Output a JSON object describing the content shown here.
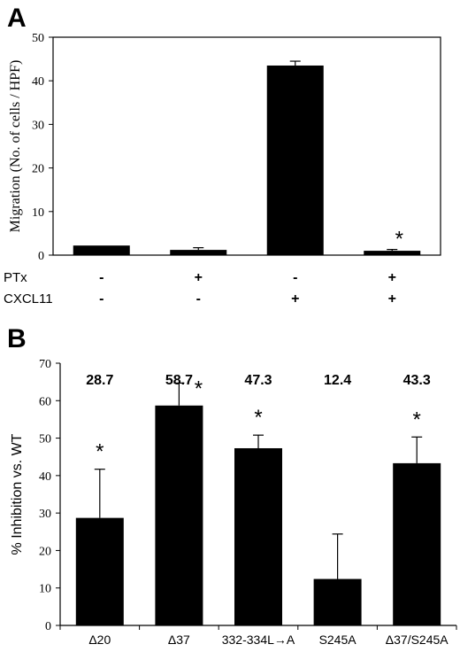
{
  "chart_data": [
    {
      "panel": "A",
      "type": "bar",
      "ylabel": "Migration (No. of cells / HPF)",
      "ylim": [
        0,
        50
      ],
      "yticks": [
        0,
        10,
        20,
        30,
        40,
        50
      ],
      "values": [
        2.2,
        1.2,
        43.5,
        1.0
      ],
      "errors": [
        0,
        0.5,
        1.0,
        0.3
      ],
      "significance": [
        "",
        "",
        "",
        "*"
      ],
      "conditions": [
        {
          "label": "PTx",
          "values": [
            "-",
            "+",
            "-",
            "+"
          ]
        },
        {
          "label": "CXCL11",
          "values": [
            "-",
            "-",
            "+",
            "+"
          ]
        }
      ]
    },
    {
      "panel": "B",
      "type": "bar",
      "ylabel": "% Inhibition vs. WT",
      "ylim": [
        0,
        70
      ],
      "yticks": [
        0,
        10,
        20,
        30,
        40,
        50,
        60,
        70
      ],
      "categories": [
        "Δ20",
        "Δ37",
        "332-334L→A",
        "S245A",
        "Δ37/S245A"
      ],
      "values": [
        28.7,
        58.7,
        47.3,
        12.4,
        43.3
      ],
      "errors": [
        13,
        6,
        3.5,
        12,
        7
      ],
      "data_labels": [
        "28.7",
        "58.7",
        "47.3",
        "12.4",
        "43.3"
      ],
      "significance": [
        "*",
        "*",
        "*",
        "",
        "*"
      ]
    }
  ]
}
